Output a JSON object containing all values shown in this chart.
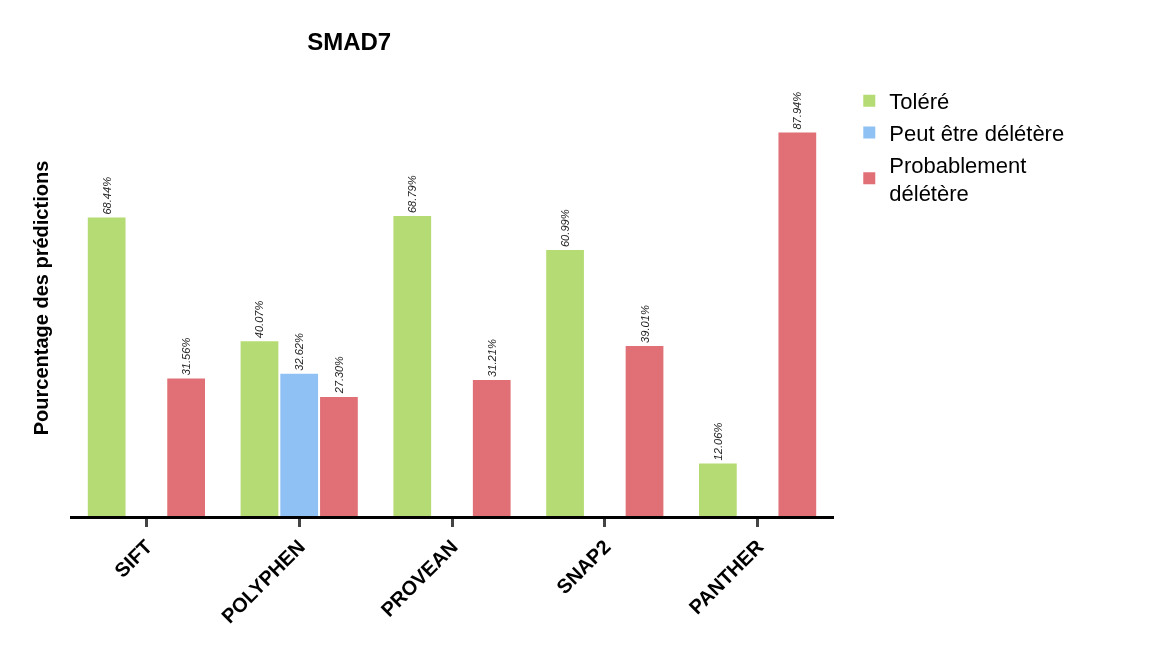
{
  "chart_data": {
    "type": "bar",
    "title": "SMAD7",
    "ylabel": "Pourcentage des prédictions",
    "categories": [
      "SIFT",
      "POLYPHEN",
      "PROVEAN",
      "SNAP2",
      "PANTHER"
    ],
    "series": [
      {
        "name": "Toléré",
        "color": "#b5dc74",
        "values": [
          68.44,
          40.07,
          68.79,
          60.99,
          12.06
        ],
        "value_labels": [
          "68.44%",
          "40.07%",
          "68.79%",
          "60.99%",
          "12.06%"
        ]
      },
      {
        "name": "Peut être délétère",
        "color": "#8fc1f5",
        "values": [
          null,
          32.62,
          null,
          null,
          null
        ],
        "value_labels": [
          null,
          "32.62%",
          null,
          null,
          null
        ]
      },
      {
        "name": "Probablement délétère",
        "color": "#e07076",
        "values": [
          31.56,
          27.3,
          31.21,
          39.01,
          87.94
        ],
        "value_labels": [
          "31.56%",
          "27.30%",
          "31.21%",
          "39.01%",
          "87.94%"
        ]
      }
    ],
    "legend": "top right"
  }
}
